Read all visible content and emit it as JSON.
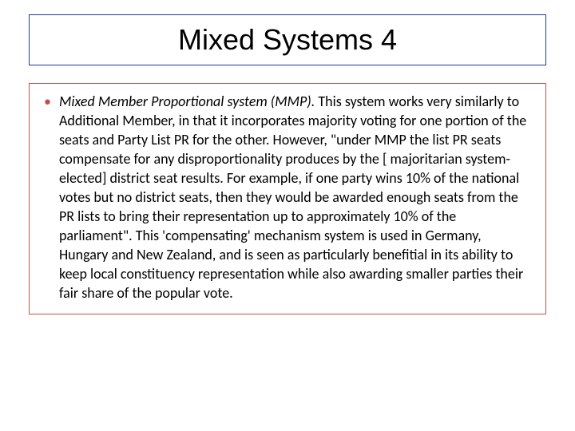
{
  "title": "Mixed Systems 4",
  "title_box": {
    "border_color": "#1f3a93",
    "border_width": 1.5,
    "font_family": "Arial",
    "font_size": 36,
    "text_color": "#000000"
  },
  "body_box": {
    "border_color": "#c0504d",
    "border_width": 1
  },
  "bullet": {
    "marker": "•",
    "marker_color": "#c0504d",
    "lead_italic": "Mixed Member Proportional system (MMP).",
    "text_rest": " This system works very similarly to Additional Member, in that it incorporates majority voting for one portion of the seats and Party List PR for the other. However, \"under MMP the list PR seats compensate for any disproportionality produces by the [ majoritarian system-elected] district seat results. For example, if one party wins 10% of the national votes but no district seats, then they would be awarded enough seats from the PR lists to bring their representation up to approximately 10% of the parliament\". This 'compensating' mechanism system is used in Germany, Hungary and New Zealand, and is seen as particularly benefitial in its ability to keep local constituency representation while also awarding smaller parties their fair share of the popular vote.",
    "font_size": 18,
    "line_height": 24,
    "text_color": "#000000"
  },
  "background_color": "#ffffff"
}
